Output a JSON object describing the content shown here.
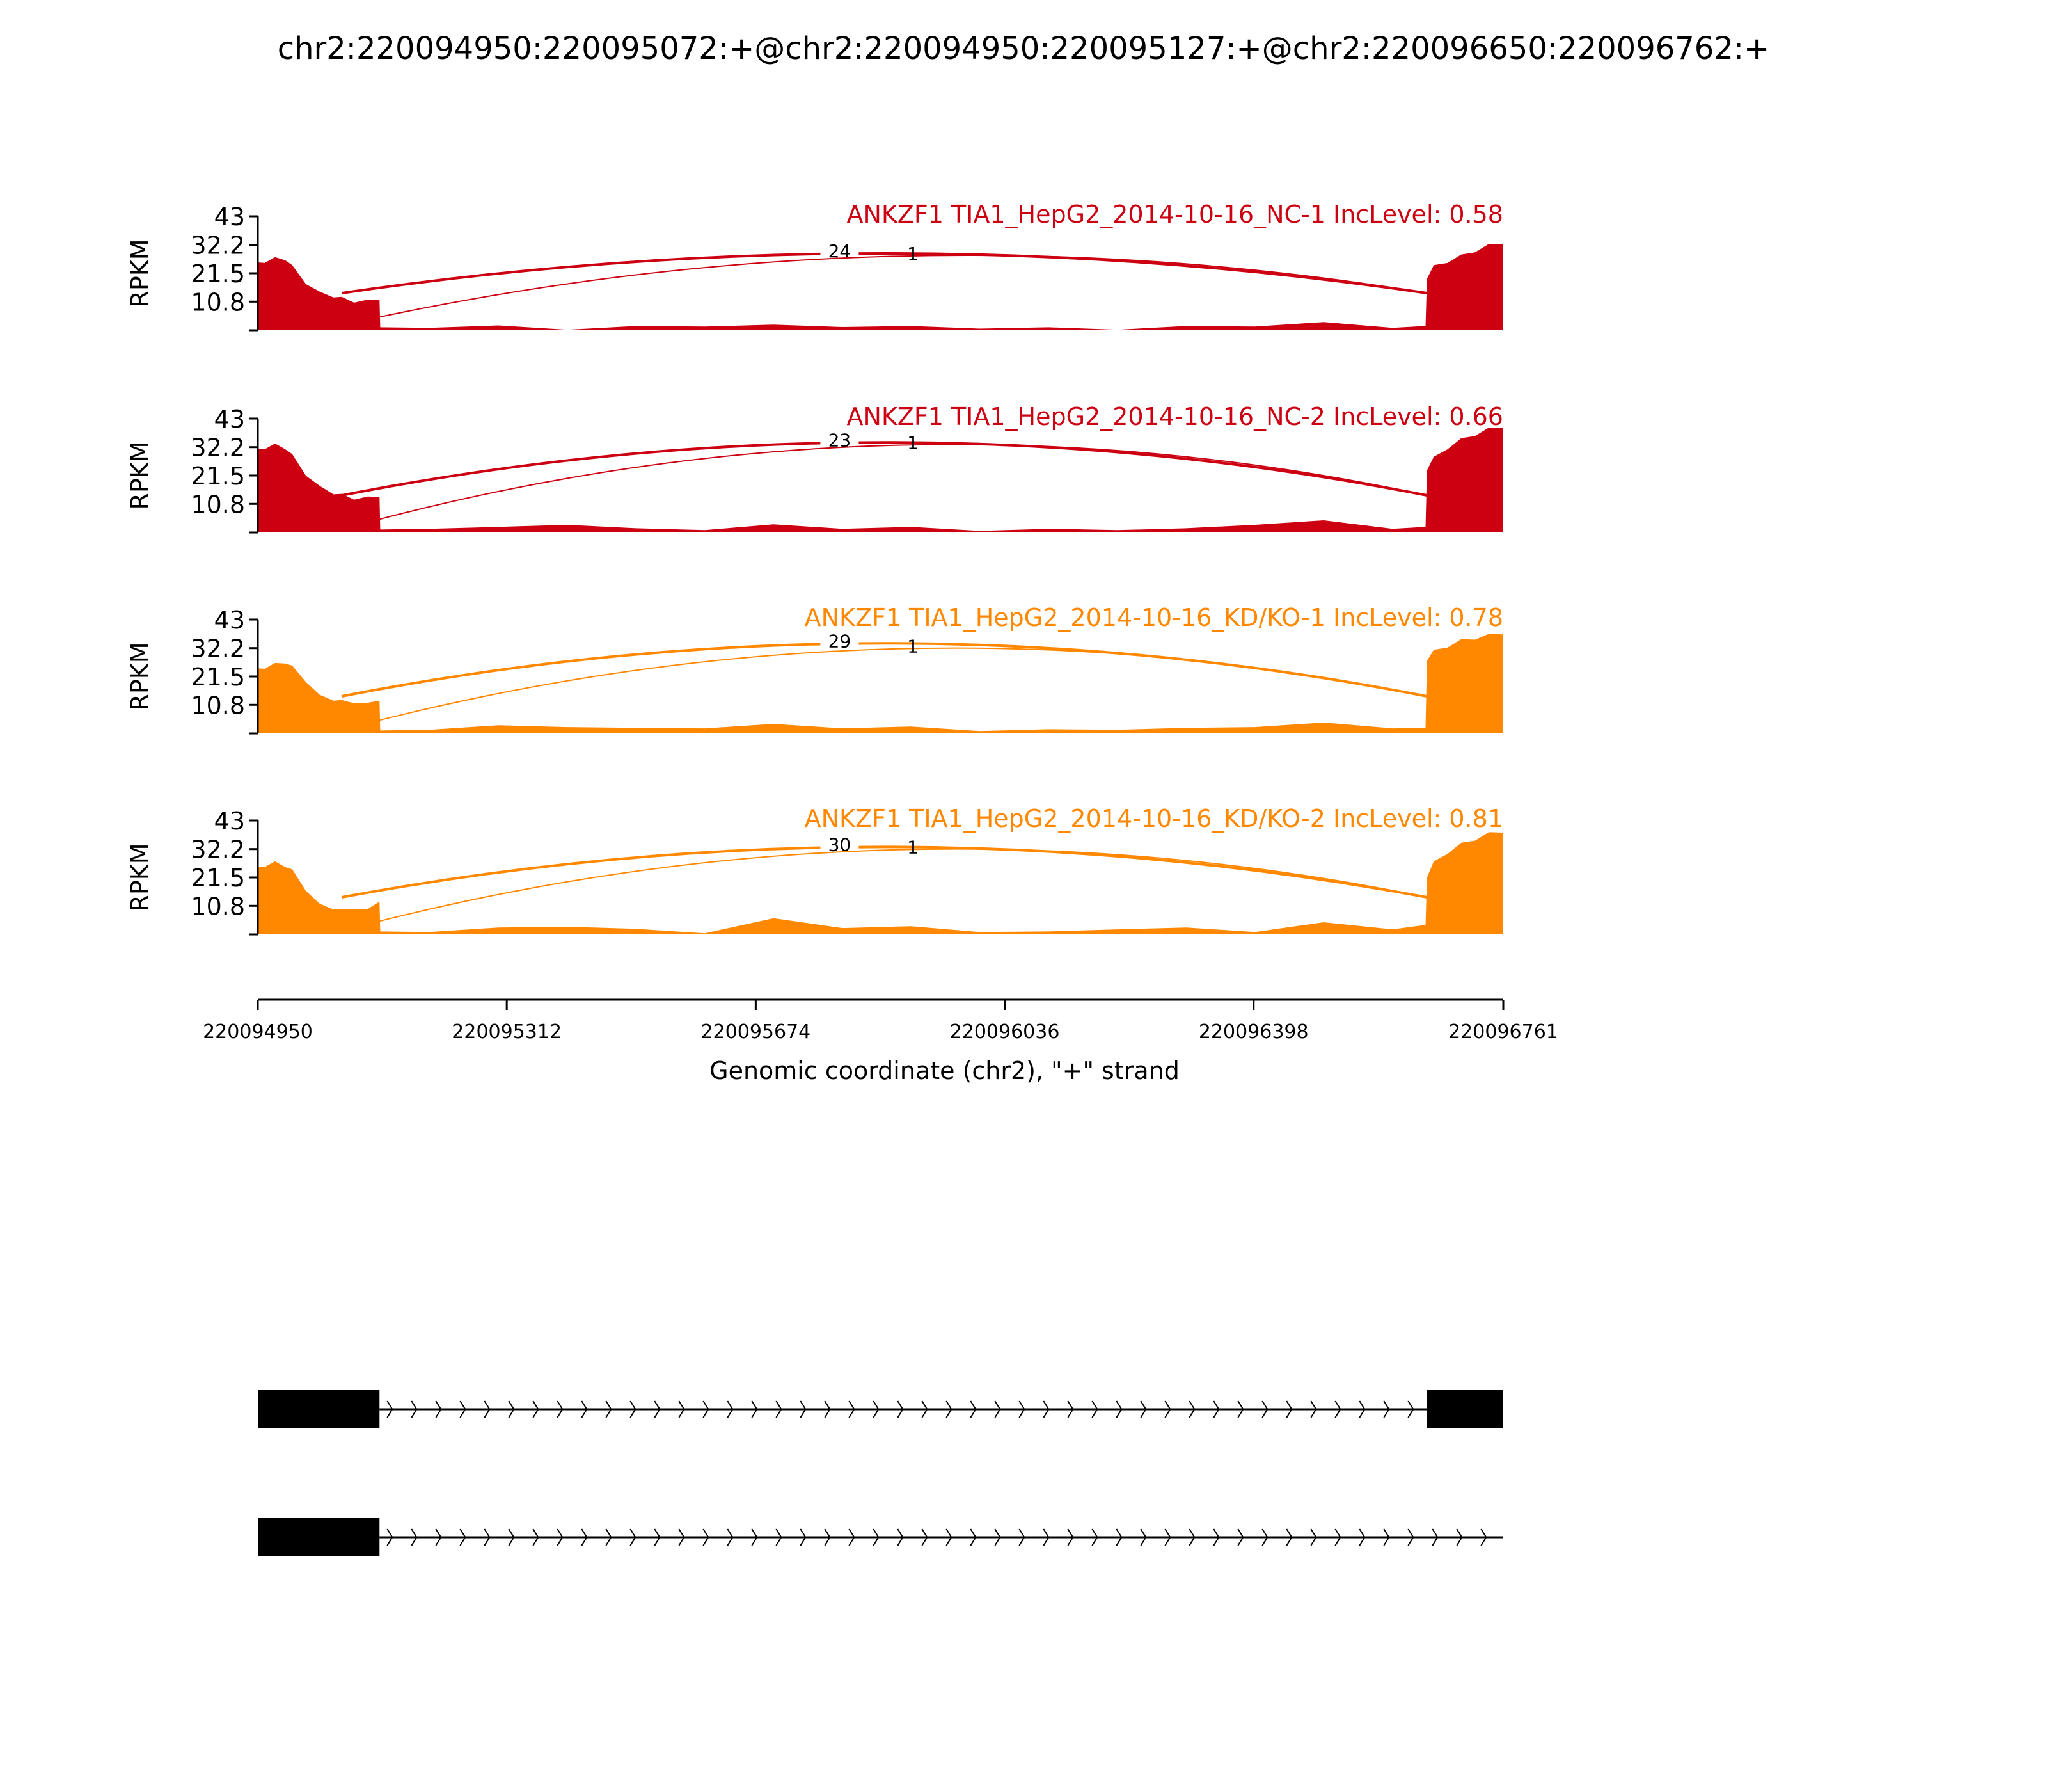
{
  "title": "chr2:220094950:220095072:+@chr2:220094950:220095127:+@chr2:220096650:220096762:+",
  "chart_data": {
    "type": "area",
    "title": "chr2:220094950:220095072:+@chr2:220094950:220095127:+@chr2:220096650:220096762:+",
    "ylabel": "RPKM",
    "xlabel": "Genomic coordinate (chr2), \"+\" strand",
    "xlim": [
      220094950,
      220096761
    ],
    "ylim": [
      0,
      43
    ],
    "yticks": [
      "43",
      "32.2",
      "21.5",
      "10.8"
    ],
    "xticks": [
      "220094950",
      "220095312",
      "220095674",
      "220096036",
      "220096398",
      "220096761"
    ],
    "exons": [
      [
        220094950,
        220095072
      ],
      [
        220095072,
        220095127
      ],
      [
        220096650,
        220096761
      ]
    ],
    "profile_x": [
      220094950,
      220094960,
      220094975,
      220094990,
      220095000,
      220095020,
      220095040,
      220095060,
      220095072,
      220095090,
      220095110,
      220095127,
      220095128,
      220095200,
      220095300,
      220095400,
      220095500,
      220095600,
      220095700,
      220095800,
      220095900,
      220096000,
      220096100,
      220096200,
      220096300,
      220096400,
      220096500,
      220096600,
      220096648,
      220096650,
      220096660,
      220096680,
      220096700,
      220096720,
      220096740,
      220096761
    ],
    "tracks": [
      {
        "name": "ANKZF1 TIA1_HepG2_2014-10-16_NC-1 IncLevel: 0.58",
        "color": "#cc0011",
        "profile": [
          25,
          26,
          27,
          27,
          24,
          18,
          14,
          13,
          12,
          11,
          11,
          12,
          0.5,
          1.5,
          1.2,
          0.8,
          1.0,
          2.0,
          1.5,
          1.8,
          1.0,
          1.2,
          0.5,
          0.8,
          1.0,
          2.0,
          2.5,
          1.5,
          1.0,
          20,
          24,
          26,
          28,
          30,
          32,
          33
        ],
        "junctions": [
          {
            "label": "24",
            "from": 220095072,
            "to": 220096650,
            "peak": 29
          },
          {
            "label": "1",
            "from": 220095127,
            "to": 220096650,
            "peak": 28
          }
        ]
      },
      {
        "name": "ANKZF1 TIA1_HepG2_2014-10-16_NC-2 IncLevel: 0.66",
        "color": "#cc0011",
        "profile": [
          31,
          32,
          33,
          32,
          29,
          22,
          17,
          15,
          14,
          13,
          13,
          14,
          0.5,
          2.0,
          1.5,
          3.5,
          1.0,
          1.5,
          2.5,
          2.0,
          1.5,
          1.2,
          0.8,
          1.5,
          1.0,
          3.5,
          4.0,
          2.0,
          1.5,
          24,
          28,
          32,
          35,
          37,
          39,
          40
        ],
        "junctions": [
          {
            "label": "23",
            "from": 220095072,
            "to": 220096650,
            "peak": 34
          },
          {
            "label": "1",
            "from": 220095127,
            "to": 220096650,
            "peak": 33
          }
        ]
      },
      {
        "name": "ANKZF1 TIA1_HepG2_2014-10-16_KD/KO-1 IncLevel: 0.78",
        "color": "#ff8800",
        "profile": [
          24,
          25,
          26,
          27,
          25,
          20,
          14,
          13,
          12,
          12,
          11,
          13,
          0.5,
          2.0,
          2.5,
          3.0,
          1.5,
          2.5,
          3.0,
          2.5,
          2.0,
          1.5,
          1.0,
          2.0,
          1.5,
          3.0,
          3.5,
          2.5,
          1.5,
          28,
          31,
          33,
          35,
          36,
          37,
          38
        ],
        "junctions": [
          {
            "label": "29",
            "from": 220095072,
            "to": 220096650,
            "peak": 34
          },
          {
            "label": "1",
            "from": 220095127,
            "to": 220096650,
            "peak": 32
          }
        ]
      },
      {
        "name": "ANKZF1 TIA1_HepG2_2014-10-16_KD/KO-2 IncLevel: 0.81",
        "color": "#ff8800",
        "profile": [
          25,
          26,
          27,
          26,
          24,
          17,
          11,
          10,
          9,
          10,
          9,
          13,
          0.5,
          1.5,
          2.0,
          3.5,
          1.5,
          1.0,
          5.5,
          3.0,
          2.5,
          1.5,
          0.5,
          2.5,
          2.0,
          1.5,
          4.0,
          2.5,
          3.0,
          22,
          27,
          31,
          34,
          36,
          38,
          39
        ],
        "junctions": [
          {
            "label": "30",
            "from": 220095072,
            "to": 220096650,
            "peak": 33
          },
          {
            "label": "1",
            "from": 220095127,
            "to": 220096650,
            "peak": 32
          }
        ]
      }
    ],
    "isoforms": [
      {
        "exons": [
          [
            220094950,
            220095127
          ],
          [
            220096650,
            220096761
          ]
        ]
      },
      {
        "exons": [
          [
            220094950,
            220095127
          ]
        ],
        "intron_end": 220096761
      }
    ]
  }
}
